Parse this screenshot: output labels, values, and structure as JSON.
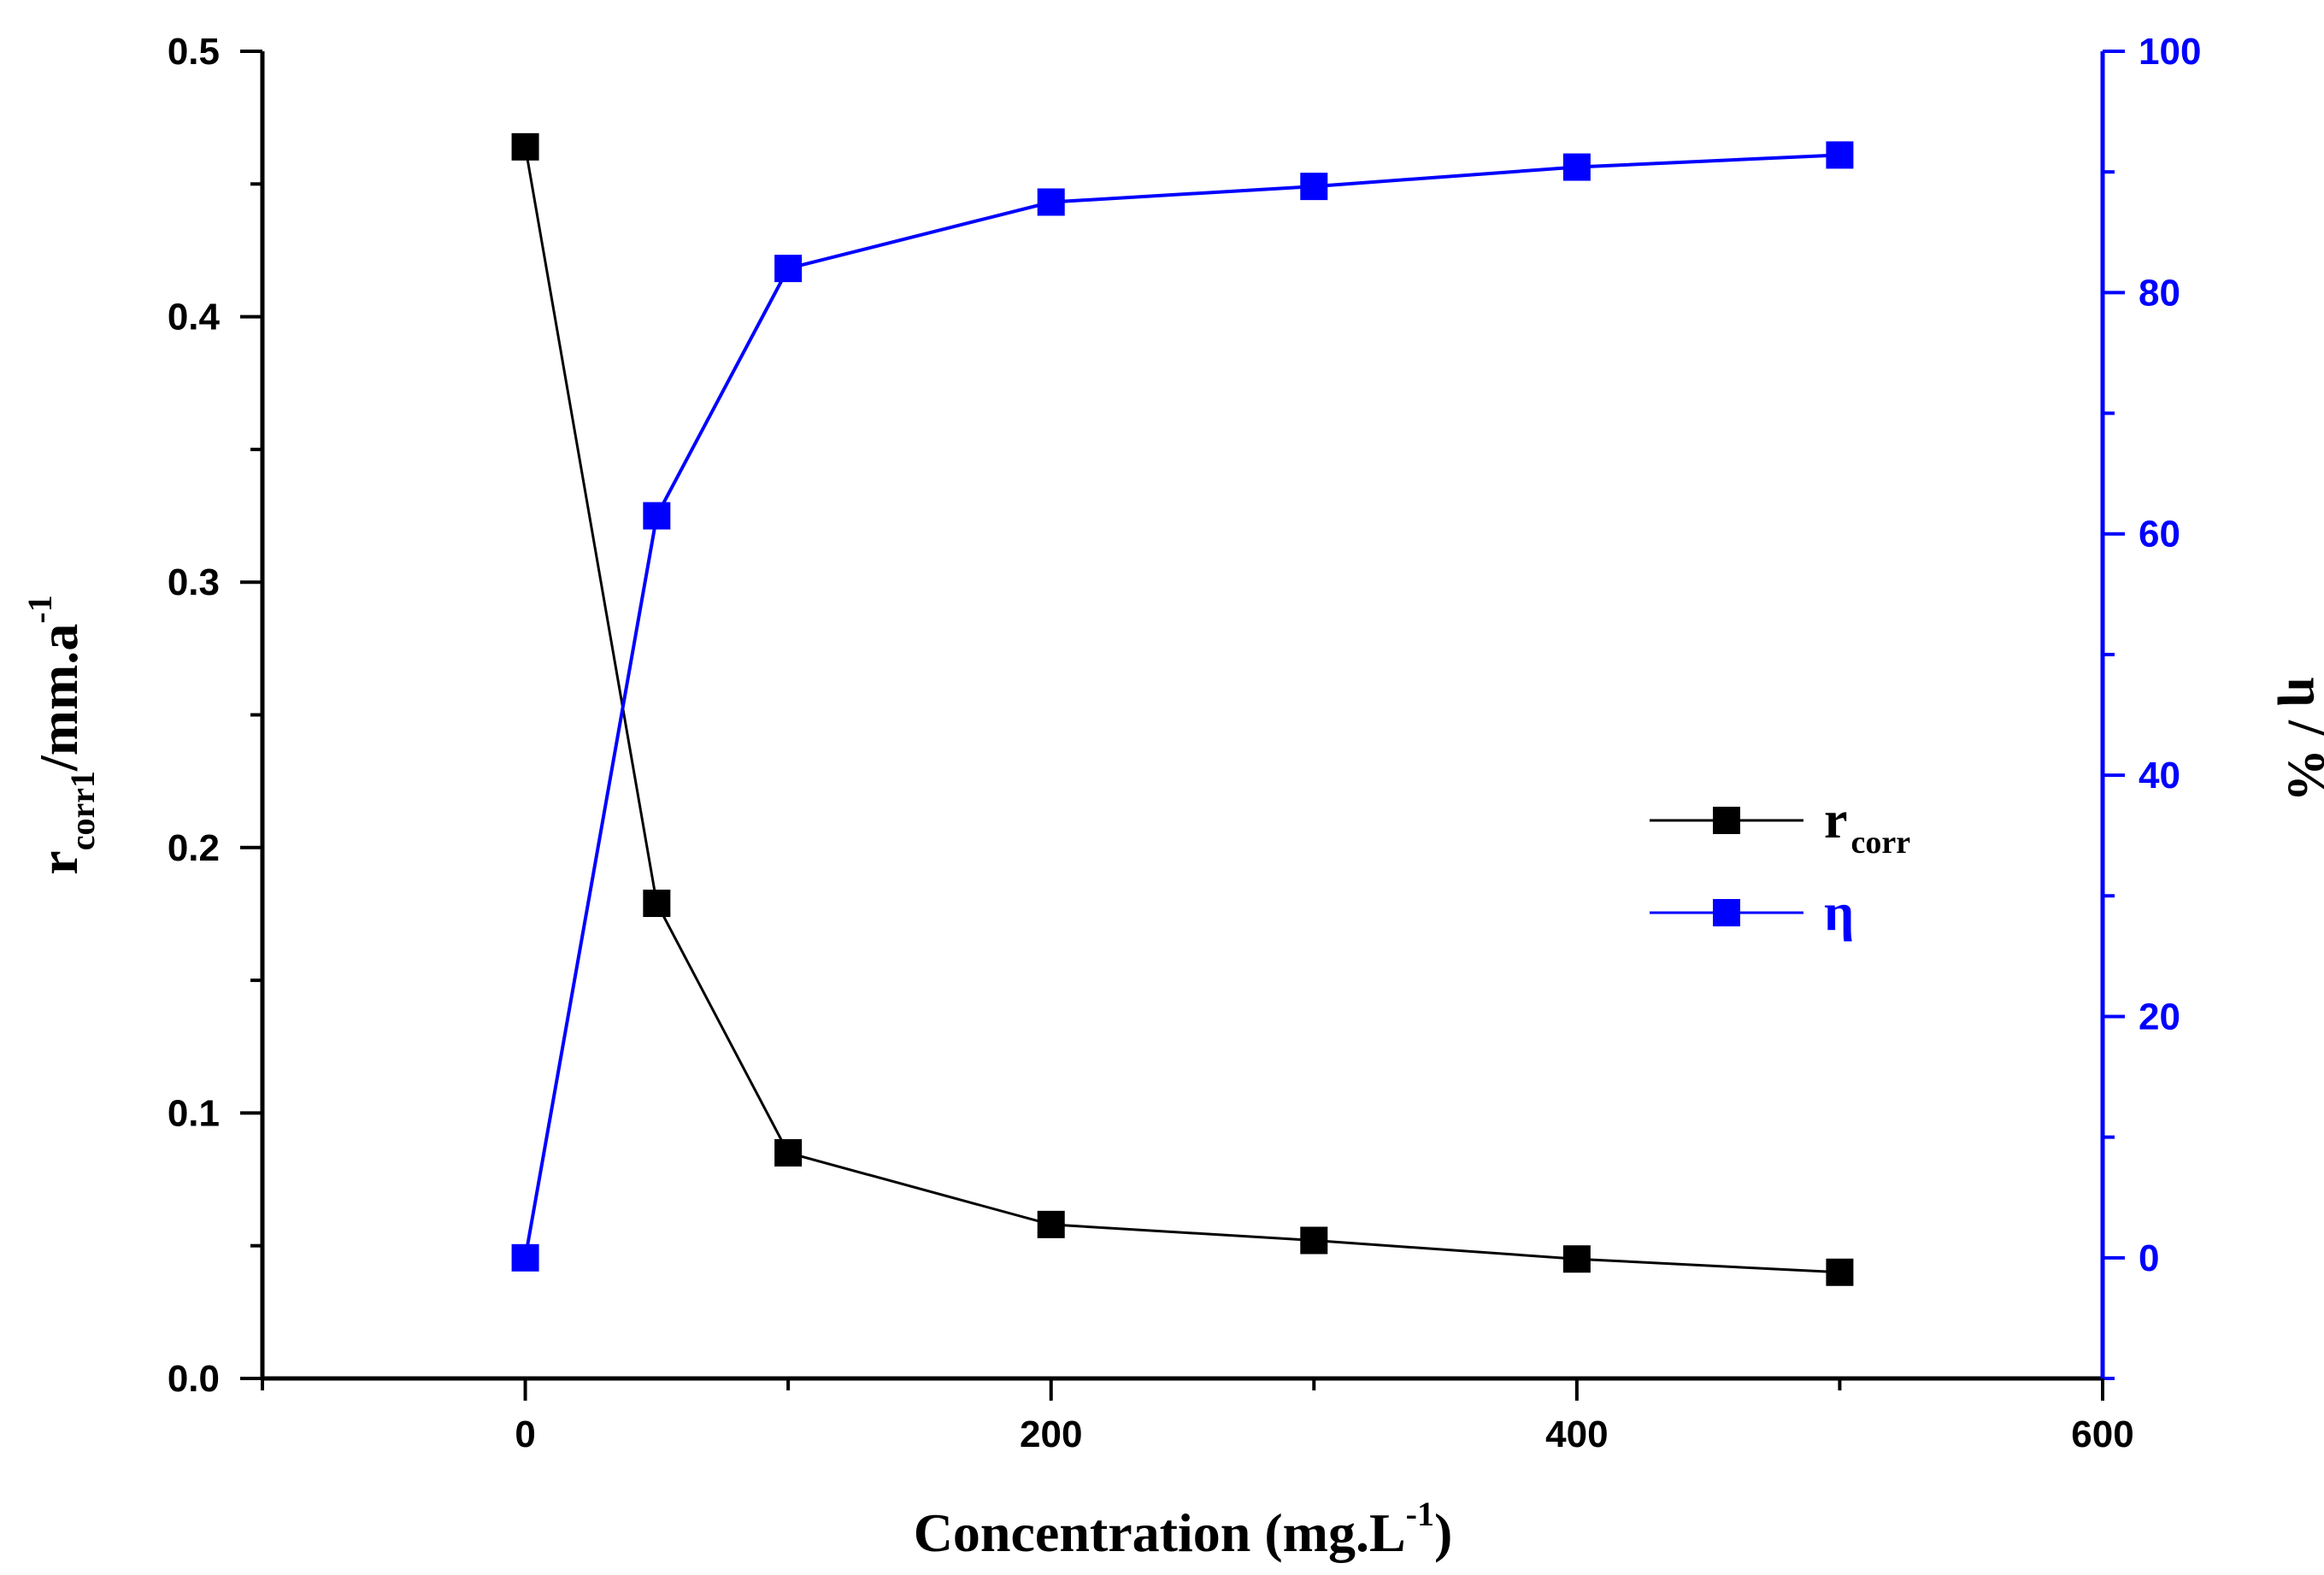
{
  "chart_data": {
    "type": "line",
    "x": [
      0,
      50,
      100,
      200,
      300,
      400,
      500
    ],
    "xlim": [
      -100,
      600
    ],
    "xticks": [
      0,
      200,
      400,
      600
    ],
    "xtick_labels": [
      "0",
      "200",
      "400",
      "600"
    ],
    "xlabel": {
      "main": "Concentration (mg.L",
      "sup": "-1",
      "end": ")"
    },
    "left_axis": {
      "ylim": [
        0,
        0.5
      ],
      "ticks": [
        0.0,
        0.1,
        0.2,
        0.3,
        0.4,
        0.5
      ],
      "tick_labels": [
        "0.0",
        "0.1",
        "0.2",
        "0.3",
        "0.4",
        "0.5"
      ],
      "label": {
        "main": "r",
        "sub": "corr1",
        "rest": "/mm.a",
        "sup": "-1"
      },
      "color": "#000000"
    },
    "right_axis": {
      "ylim": [
        -10,
        100
      ],
      "ticks": [
        0,
        20,
        40,
        60,
        80,
        100
      ],
      "tick_labels": [
        "0",
        "20",
        "40",
        "60",
        "80",
        "100"
      ],
      "label": "η / %",
      "color": "#0000ff"
    },
    "series": [
      {
        "name": "r_corr",
        "legend_main": "r",
        "legend_sub": "corr",
        "axis": "left",
        "color": "#000000",
        "values": [
          0.464,
          0.179,
          0.085,
          0.058,
          0.052,
          0.045,
          0.04
        ]
      },
      {
        "name": "η",
        "legend_main": "η",
        "legend_sub": "",
        "axis": "right",
        "color": "#0000ff",
        "values": [
          0,
          61.5,
          82,
          87.5,
          88.8,
          90.4,
          91.4
        ]
      }
    ],
    "legend_position": "center-right"
  }
}
